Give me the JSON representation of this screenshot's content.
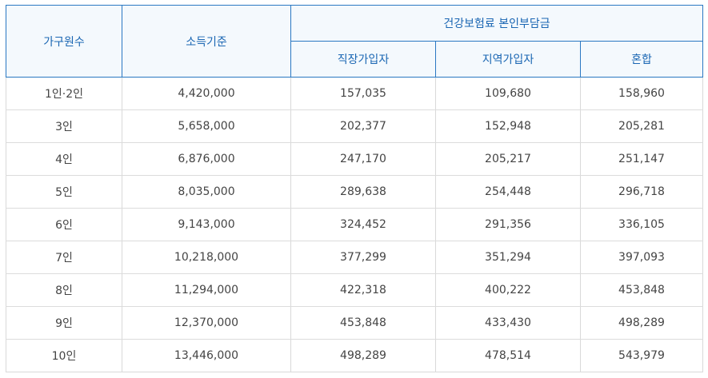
{
  "headers": {
    "household": "가구원수",
    "income": "소득기준",
    "premium_group": "건강보험료 본인부담금",
    "employee": "직장가입자",
    "regional": "지역가입자",
    "mixed": "혼합"
  },
  "rows": [
    {
      "household": "1인·2인",
      "income": "4,420,000",
      "employee": "157,035",
      "regional": "109,680",
      "mixed": "158,960"
    },
    {
      "household": "3인",
      "income": "5,658,000",
      "employee": "202,377",
      "regional": "152,948",
      "mixed": "205,281"
    },
    {
      "household": "4인",
      "income": "6,876,000",
      "employee": "247,170",
      "regional": "205,217",
      "mixed": "251,147"
    },
    {
      "household": "5인",
      "income": "8,035,000",
      "employee": "289,638",
      "regional": "254,448",
      "mixed": "296,718"
    },
    {
      "household": "6인",
      "income": "9,143,000",
      "employee": "324,452",
      "regional": "291,356",
      "mixed": "336,105"
    },
    {
      "household": "7인",
      "income": "10,218,000",
      "employee": "377,299",
      "regional": "351,294",
      "mixed": "397,093"
    },
    {
      "household": "8인",
      "income": "11,294,000",
      "employee": "422,318",
      "regional": "400,222",
      "mixed": "453,848"
    },
    {
      "household": "9인",
      "income": "12,370,000",
      "employee": "453,848",
      "regional": "433,430",
      "mixed": "498,289"
    },
    {
      "household": "10인",
      "income": "13,446,000",
      "employee": "498,289",
      "regional": "478,514",
      "mixed": "543,979"
    }
  ]
}
